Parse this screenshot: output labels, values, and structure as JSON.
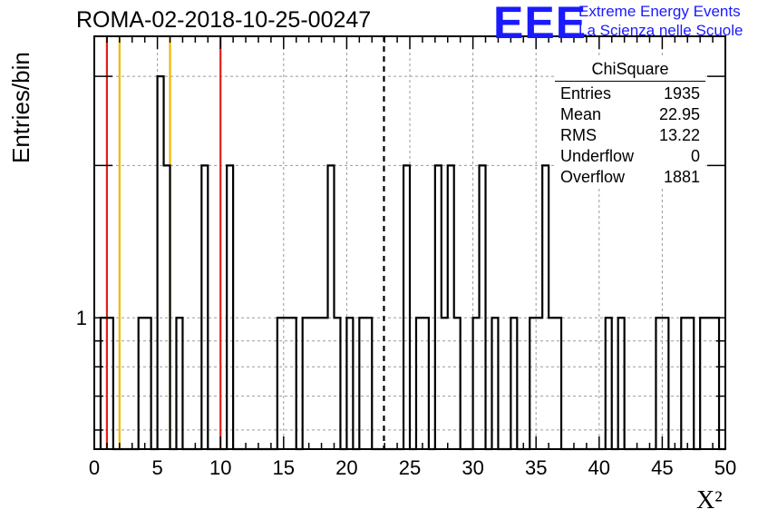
{
  "header": {
    "run_title": "ROMA-02-2018-10-25-00247",
    "logo_letters": "EEE",
    "logo_line1": "Extreme Energy Events",
    "logo_line2": "La Scienza nelle Scuole",
    "logo_color": "#1a1aff"
  },
  "stats": {
    "title": "ChiSquare",
    "rows": [
      {
        "label": "Entries",
        "value": "1935"
      },
      {
        "label": "Mean",
        "value": "22.95"
      },
      {
        "label": "RMS",
        "value": "13.22"
      },
      {
        "label": "Underflow",
        "value": "0"
      },
      {
        "label": "Overflow",
        "value": "1881"
      }
    ]
  },
  "chart_data": {
    "type": "bar",
    "histogram": "step",
    "xlabel": "X²",
    "ylabel": "Entries/bin",
    "xlim": [
      0,
      50
    ],
    "ylim": [
      0.55,
      3.6
    ],
    "yscale": "log",
    "grid": true,
    "bin_width": 0.5,
    "bin_edges": [
      0.5,
      1.5,
      3.5,
      4.5,
      5.0,
      5.5,
      6.0,
      6.5,
      7.0,
      8.5,
      9.0,
      10.5,
      11.0,
      14.5,
      16.0,
      16.5,
      18.5,
      19.0,
      19.5,
      20.0,
      20.5,
      21.0,
      22.0,
      22.5,
      24.5,
      25.0,
      25.5,
      26.5,
      27.0,
      27.5,
      28.0,
      28.5,
      29.0,
      30.0,
      30.5,
      31.0,
      31.5,
      32.0,
      33.0,
      33.5,
      34.5,
      35.5,
      36.0,
      37.0,
      40.5,
      41.0,
      41.5,
      42.0,
      44.5,
      45.5,
      46.5,
      47.5,
      48.0,
      49.5,
      50.0
    ],
    "bin_values": [
      1,
      0,
      1,
      0,
      3,
      2,
      0,
      1,
      0,
      2,
      0,
      2,
      0,
      1,
      0,
      1,
      2,
      1,
      0,
      1,
      0,
      1,
      0,
      0,
      2,
      0,
      1,
      0,
      2,
      1,
      2,
      1,
      0,
      1,
      2,
      0,
      1,
      0,
      1,
      0,
      1,
      2,
      1,
      0,
      1,
      0,
      1,
      0,
      1,
      0,
      1,
      0,
      1,
      0
    ],
    "xticks": [
      0,
      5,
      10,
      15,
      20,
      25,
      30,
      35,
      40,
      45,
      50
    ],
    "yticks_labeled": [
      1
    ],
    "cut_lines": [
      {
        "x": 1.0,
        "color": "#e0201a",
        "style": "solid"
      },
      {
        "x": 10.0,
        "color": "#e0201a",
        "style": "solid"
      },
      {
        "x": 2.0,
        "color": "#f0b800",
        "style": "solid"
      },
      {
        "x": 6.0,
        "color": "#f0b800",
        "style": "solid"
      },
      {
        "x": 22.95,
        "color": "#000000",
        "style": "dashed"
      }
    ]
  }
}
